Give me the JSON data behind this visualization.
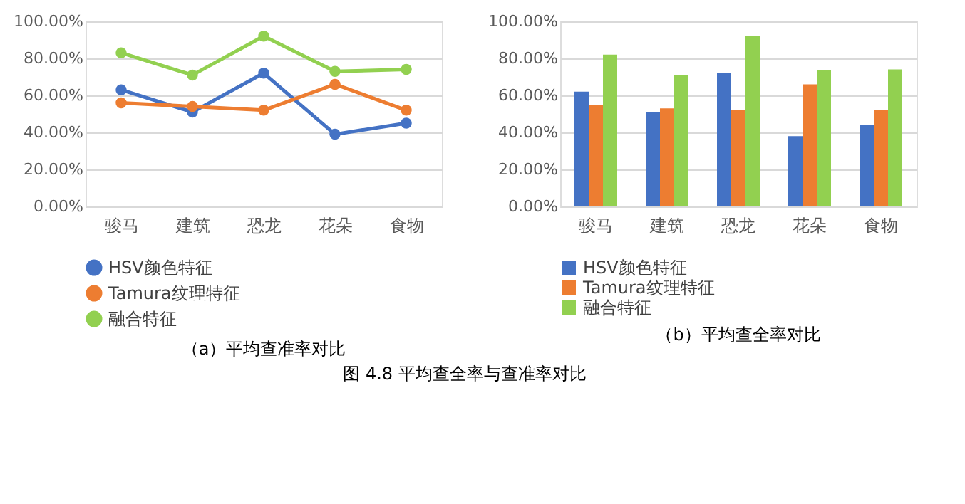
{
  "chart_data": [
    {
      "type": "line",
      "title": "（a）平均查准率对比",
      "categories": [
        "骏马",
        "建筑",
        "恐龙",
        "花朵",
        "食物"
      ],
      "series": [
        {
          "name": "HSV颜色特征",
          "color": "#4472c4",
          "values": [
            63,
            51,
            72,
            39,
            45
          ]
        },
        {
          "name": "Tamura纹理特征",
          "color": "#ed7d31",
          "values": [
            56,
            54,
            52,
            66,
            52
          ]
        },
        {
          "name": "融合特征",
          "color": "#92d050",
          "values": [
            83,
            71,
            92,
            73,
            74
          ]
        }
      ],
      "ylim": [
        0,
        100
      ],
      "yticks": [
        {
          "value": 0,
          "label": "0.00%"
        },
        {
          "value": 20,
          "label": "20.00%"
        },
        {
          "value": 40,
          "label": "40.00%"
        },
        {
          "value": 60,
          "label": "60.00%"
        },
        {
          "value": 80,
          "label": "80.00%"
        },
        {
          "value": 100,
          "label": "100.00%"
        }
      ],
      "grid": "y",
      "legend": "bottom",
      "marker": "circle",
      "line_style": "solid"
    },
    {
      "type": "bar",
      "title": "（b）平均查全率对比",
      "categories": [
        "骏马",
        "建筑",
        "恐龙",
        "花朵",
        "食物"
      ],
      "series": [
        {
          "name": "HSV颜色特征",
          "color": "#4472c4",
          "values": [
            62,
            51,
            72,
            38,
            44
          ]
        },
        {
          "name": "Tamura纹理特征",
          "color": "#ed7d31",
          "values": [
            55,
            53,
            52,
            66,
            52
          ]
        },
        {
          "name": "融合特征",
          "color": "#92d050",
          "values": [
            82,
            71,
            92,
            73.5,
            74
          ]
        }
      ],
      "ylim": [
        0,
        100
      ],
      "yticks": [
        {
          "value": 0,
          "label": "0.00%"
        },
        {
          "value": 20,
          "label": "20.00%"
        },
        {
          "value": 40,
          "label": "40.00%"
        },
        {
          "value": 60,
          "label": "60.00%"
        },
        {
          "value": 80,
          "label": "80.00%"
        },
        {
          "value": 100,
          "label": "100.00%"
        }
      ],
      "grid": "y",
      "legend": "bottom",
      "annotations": [
        "图 4.8 平均查全率与查准率对比"
      ]
    }
  ]
}
